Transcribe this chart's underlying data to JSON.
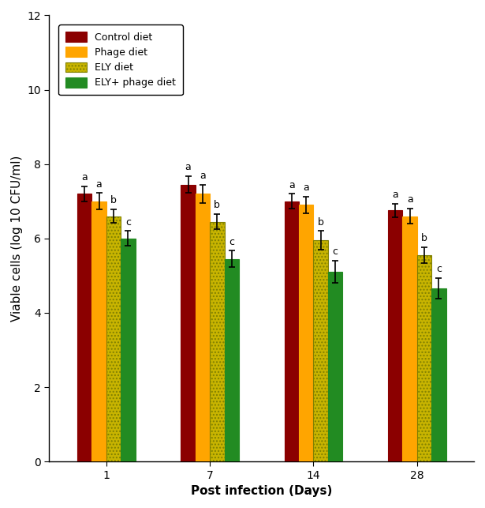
{
  "days": [
    1,
    7,
    14,
    28
  ],
  "day_labels": [
    "1",
    "7",
    "14",
    "28"
  ],
  "groups": [
    "Control diet",
    "Phage diet",
    "ELY diet",
    "ELY+ phage diet"
  ],
  "values": [
    [
      7.2,
      7.45,
      7.0,
      6.75
    ],
    [
      7.0,
      7.2,
      6.9,
      6.6
    ],
    [
      6.6,
      6.45,
      5.95,
      5.55
    ],
    [
      6.0,
      5.45,
      5.1,
      4.65
    ]
  ],
  "errors": [
    [
      0.2,
      0.22,
      0.2,
      0.18
    ],
    [
      0.22,
      0.25,
      0.22,
      0.2
    ],
    [
      0.18,
      0.2,
      0.25,
      0.22
    ],
    [
      0.2,
      0.22,
      0.3,
      0.28
    ]
  ],
  "letters": [
    [
      "a",
      "a",
      "a",
      "a"
    ],
    [
      "a",
      "a",
      "a",
      "a"
    ],
    [
      "b",
      "b",
      "b",
      "b"
    ],
    [
      "c",
      "c",
      "c",
      "c"
    ]
  ],
  "bar_facecolors": [
    "#8B0000",
    "#FFA500",
    "#C8B400",
    "#228B22"
  ],
  "bar_edgecolors": [
    "#8B0000",
    "#FFA500",
    "#C8B400",
    "#228B22"
  ],
  "hatch_patterns": [
    "",
    "////",
    "....",
    "////"
  ],
  "hatch_edgecolors": [
    "#8B0000",
    "#FFA500",
    "#808000",
    "#228B22"
  ],
  "xlabel": "Post infection (Days)",
  "ylabel": "Viable cells (log 10 CFU/ml)",
  "ylim": [
    0,
    12
  ],
  "yticks": [
    0,
    2,
    4,
    6,
    8,
    10,
    12
  ],
  "bar_width": 0.14,
  "legend_loc": "upper left",
  "label_fontsize": 11,
  "tick_fontsize": 10,
  "legend_fontsize": 9,
  "letter_fontsize": 9
}
